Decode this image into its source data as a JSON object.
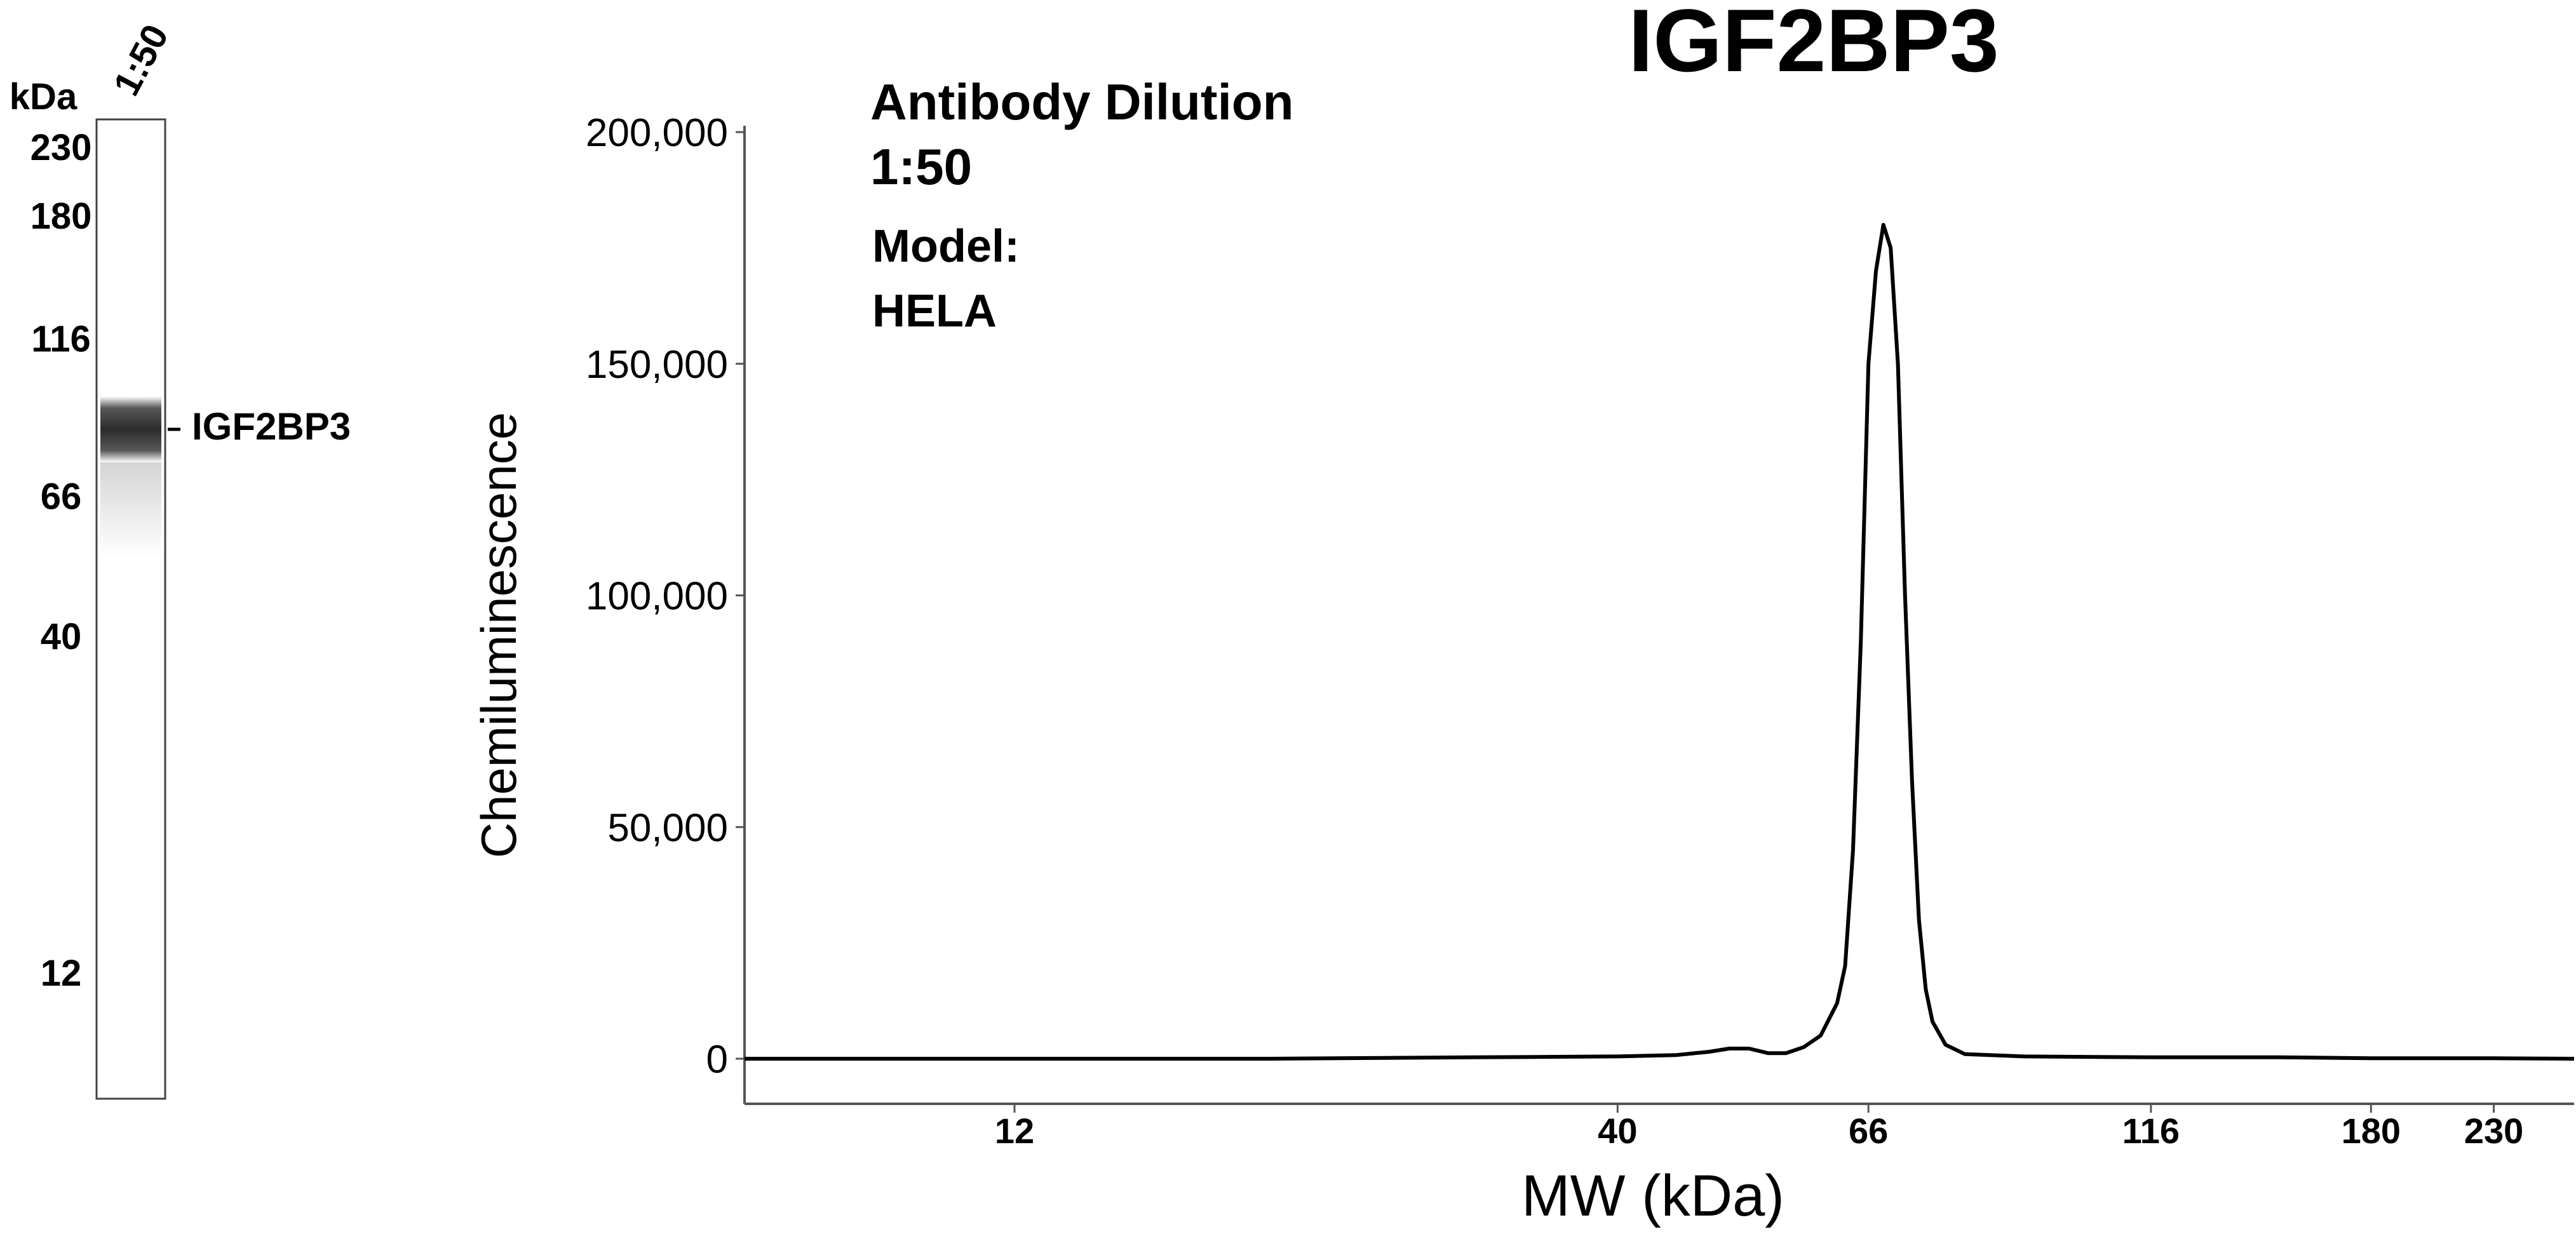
{
  "gel": {
    "header_units": "kDa",
    "lane_label": "1:50",
    "ladder": [
      {
        "label": "230",
        "kda": 230
      },
      {
        "label": "180",
        "kda": 180
      },
      {
        "label": "116",
        "kda": 116
      },
      {
        "label": "66",
        "kda": 66
      },
      {
        "label": "40",
        "kda": 40
      },
      {
        "label": "12",
        "kda": 12
      }
    ],
    "band_label": "IGF2BP3",
    "band_kda": 72
  },
  "chart_data": {
    "type": "line",
    "title": "IGF2BP3",
    "annotations": [
      "Antibody Dilution",
      "1:50",
      "Model:",
      "HELA"
    ],
    "xlabel": "MW (kDa)",
    "ylabel": "Chemiluminescence",
    "x_scale": "log",
    "xlim": [
      7,
      270
    ],
    "ylim": [
      0,
      200000
    ],
    "x_ticks": [
      {
        "label": "12",
        "value": 12
      },
      {
        "label": "40",
        "value": 40
      },
      {
        "label": "66",
        "value": 66
      },
      {
        "label": "116",
        "value": 116
      },
      {
        "label": "180",
        "value": 180
      },
      {
        "label": "230",
        "value": 230
      }
    ],
    "y_ticks": [
      {
        "label": "0",
        "value": 0
      },
      {
        "label": "50,000",
        "value": 50000
      },
      {
        "label": "100,000",
        "value": 100000
      },
      {
        "label": "150,000",
        "value": 150000
      },
      {
        "label": "200,000",
        "value": 200000
      }
    ],
    "grid": false,
    "series": [
      {
        "color": "#000000",
        "points": [
          [
            7,
            0
          ],
          [
            12,
            0
          ],
          [
            20,
            0
          ],
          [
            30,
            300
          ],
          [
            40,
            500
          ],
          [
            45,
            800
          ],
          [
            48,
            1500
          ],
          [
            50,
            2200
          ],
          [
            52,
            2200
          ],
          [
            54,
            1200
          ],
          [
            56,
            1200
          ],
          [
            58,
            2500
          ],
          [
            60,
            5000
          ],
          [
            62,
            12000
          ],
          [
            63,
            20000
          ],
          [
            64,
            45000
          ],
          [
            65,
            90000
          ],
          [
            66,
            150000
          ],
          [
            67,
            170000
          ],
          [
            68,
            180000
          ],
          [
            69,
            175000
          ],
          [
            70,
            150000
          ],
          [
            71,
            100000
          ],
          [
            72,
            60000
          ],
          [
            73,
            30000
          ],
          [
            74,
            15000
          ],
          [
            75,
            8000
          ],
          [
            77,
            3000
          ],
          [
            80,
            1000
          ],
          [
            90,
            500
          ],
          [
            116,
            300
          ],
          [
            150,
            300
          ],
          [
            180,
            100
          ],
          [
            230,
            100
          ],
          [
            270,
            0
          ]
        ]
      }
    ]
  }
}
